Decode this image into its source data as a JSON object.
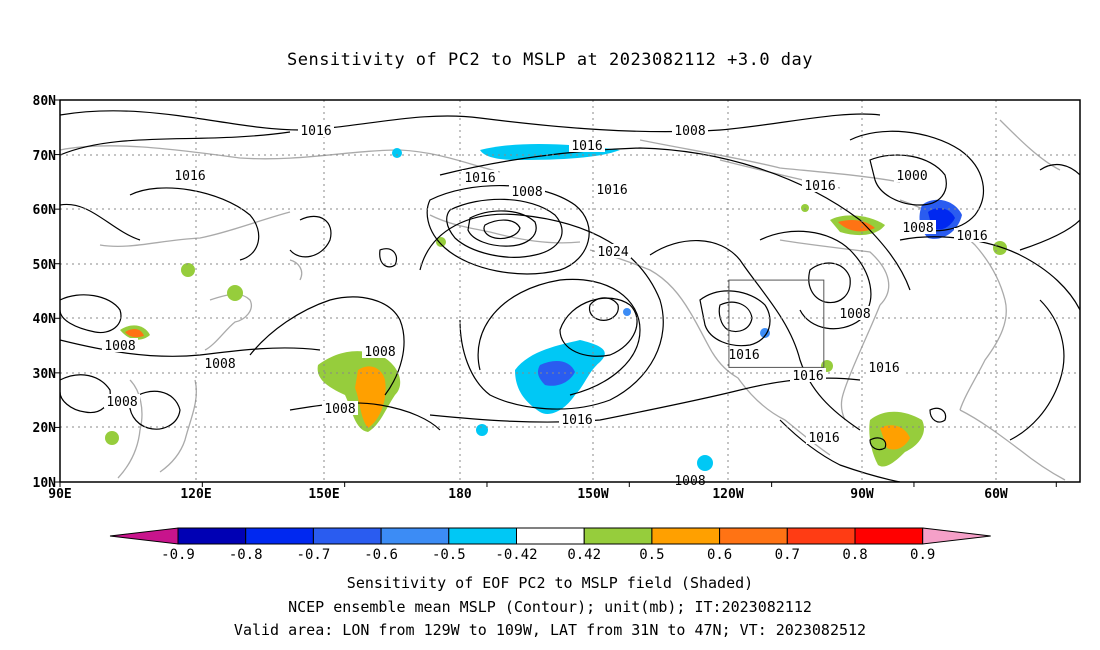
{
  "title": "Sensitivity of PC2 to MSLP at 2023082112 +3.0 day",
  "axes": {
    "lat_labels": [
      "80N",
      "70N",
      "60N",
      "50N",
      "40N",
      "30N",
      "20N",
      "10N"
    ],
    "lon_labels": [
      "90E",
      "120E",
      "150E",
      "180",
      "150W",
      "120W",
      "90W",
      "60W"
    ]
  },
  "contour_labels": [
    "1016",
    "1008",
    "1016",
    "1016",
    "1008",
    "1016",
    "1016",
    "1000",
    "1016",
    "1008",
    "1016",
    "1024",
    "1008",
    "1016",
    "1008",
    "1008",
    "1008",
    "1008",
    "1008",
    "1016",
    "1016",
    "1016",
    "1016",
    "1008"
  ],
  "colorbar": {
    "ticks": [
      "-0.9",
      "-0.8",
      "-0.7",
      "-0.6",
      "-0.5",
      "-0.42",
      "0.42",
      "0.5",
      "0.6",
      "0.7",
      "0.8",
      "0.9"
    ],
    "colors": [
      "#0000b4",
      "#0028f0",
      "#2a5cf0",
      "#3c8cf5",
      "#00c8f5",
      "#ffffff",
      "#96cd3c",
      "#ffa000",
      "#ff7314",
      "#ff3c14",
      "#ff0000"
    ],
    "low_end_color": "#c8148c",
    "high_end_color": "#f5a0c8"
  },
  "valid_area": {
    "lon": [
      -129,
      -109
    ],
    "lat": [
      31,
      47
    ]
  },
  "caption_lines": [
    "Sensitivity of EOF PC2 to MSLP field (Shaded)",
    "NCEP ensemble mean MSLP (Contour); unit(mb); IT:2023082112",
    "Valid area: LON from 129W to 109W, LAT from 31N to 47N; VT: 2023082512"
  ]
}
